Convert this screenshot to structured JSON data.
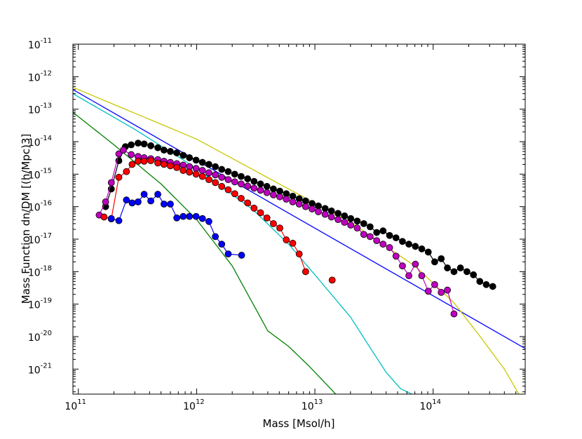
{
  "chart_data": {
    "type": "scatter",
    "title": "",
    "xlabel": "Mass [Msol/h]",
    "ylabel": "Mass Function dn/DM [(h/Mpc)3]",
    "x_scale": "log",
    "y_scale": "log",
    "xlim": [
      90000000000.0,
      600000000000000.0
    ],
    "ylim": [
      1.7e-22,
      1e-11
    ],
    "x_ticks": [
      {
        "value": 100000000000.0,
        "base": "10",
        "exp": "11"
      },
      {
        "value": 1000000000000.0,
        "base": "10",
        "exp": "12"
      },
      {
        "value": 10000000000000.0,
        "base": "10",
        "exp": "13"
      },
      {
        "value": 100000000000000.0,
        "base": "10",
        "exp": "14"
      }
    ],
    "y_ticks": [
      {
        "value": 1e-11,
        "base": "10",
        "exp": "-11"
      },
      {
        "value": 1e-12,
        "base": "10",
        "exp": "-12"
      },
      {
        "value": 1e-13,
        "base": "10",
        "exp": "-13"
      },
      {
        "value": 1e-14,
        "base": "10",
        "exp": "-14"
      },
      {
        "value": 1e-15,
        "base": "10",
        "exp": "-15"
      },
      {
        "value": 1e-16,
        "base": "10",
        "exp": "-16"
      },
      {
        "value": 1e-17,
        "base": "10",
        "exp": "-17"
      },
      {
        "value": 1e-18,
        "base": "10",
        "exp": "-18"
      },
      {
        "value": 1e-19,
        "base": "10",
        "exp": "-19"
      },
      {
        "value": 1e-20,
        "base": "10",
        "exp": "-20"
      },
      {
        "value": 1e-21,
        "base": "10",
        "exp": "-21"
      }
    ],
    "curves": [
      {
        "name": "fit-blue",
        "color": "#0000ff",
        "x": [
          90000000000.0,
          600000000000000.0
        ],
        "y": [
          4e-13,
          4.3e-21
        ]
      },
      {
        "name": "fit-yellow",
        "color": "#c8c800",
        "x": [
          90000000000.0,
          1000000000000.0,
          5000000000000.0,
          20000000000000.0,
          70000000000000.0,
          150000000000000.0,
          250000000000000.0,
          400000000000000.0,
          530000000000000.0
        ],
        "y": [
          4.7e-13,
          1.2e-14,
          5e-16,
          3.3e-17,
          1.5e-18,
          1.1e-19,
          1e-20,
          1e-21,
          1.7e-22
        ]
      },
      {
        "name": "fit-cyan",
        "color": "#00bfbf",
        "x": [
          90000000000.0,
          300000000000.0,
          1000000000000.0,
          3000000000000.0,
          6000000000000.0,
          10000000000000.0,
          20000000000000.0,
          30000000000000.0,
          40000000000000.0,
          53000000000000.0,
          66000000000000.0
        ],
        "y": [
          3e-13,
          2.4e-14,
          1.5e-15,
          8e-17,
          7e-18,
          8e-19,
          4e-20,
          4e-21,
          8e-22,
          2.5e-22,
          1.7e-22
        ]
      },
      {
        "name": "fit-green",
        "color": "#008000",
        "x": [
          90000000000.0,
          200000000000.0,
          500000000000.0,
          1000000000000.0,
          2000000000000.0,
          4000000000000.0,
          6000000000000.0,
          9000000000000.0,
          12000000000000.0,
          15000000000000.0
        ],
        "y": [
          8e-14,
          8e-15,
          5e-16,
          4e-17,
          1.5e-18,
          1.5e-20,
          5e-21,
          1.2e-21,
          4e-22,
          1.7e-22
        ]
      }
    ],
    "series": [
      {
        "name": "black",
        "color": "#000000",
        "x": [
          170000000000.0,
          190000000000.0,
          220000000000.0,
          250000000000.0,
          280000000000.0,
          320000000000.0,
          360000000000.0,
          410000000000.0,
          470000000000.0,
          530000000000.0,
          600000000000.0,
          680000000000.0,
          770000000000.0,
          870000000000.0,
          990000000000.0,
          1120000000000.0,
          1270000000000.0,
          1440000000000.0,
          1630000000000.0,
          1850000000000.0,
          2100000000000.0,
          2380000000000.0,
          2700000000000.0,
          3060000000000.0,
          3470000000000.0,
          3930000000000.0,
          4460000000000.0,
          5050000000000.0,
          5730000000000.0,
          6500000000000.0,
          7370000000000.0,
          8350000000000.0,
          9470000000000.0,
          10700000000000.0,
          12200000000000.0,
          13800000000000.0,
          15700000000000.0,
          17800000000000.0,
          20100000000000.0,
          22800000000000.0,
          25900000000000.0,
          29300000000000.0,
          33300000000000.0,
          37700000000000.0,
          42800000000000.0,
          48500000000000.0,
          55000000000000.0,
          62300000000000.0,
          70700000000000.0,
          80100000000000.0,
          90900000000000.0,
          103000000000000.0,
          117000000000000.0,
          132000000000000.0,
          150000000000000.0,
          170000000000000.0,
          193000000000000.0,
          219000000000000.0,
          248000000000000.0,
          281000000000000.0,
          319000000000000.0
        ],
        "y": [
          1e-16,
          3.5e-16,
          2.6e-15,
          7e-15,
          8e-15,
          9e-15,
          8.5e-15,
          7.5e-15,
          6.5e-15,
          5.5e-15,
          5e-15,
          4.5e-15,
          3.8e-15,
          3.2e-15,
          2.7e-15,
          2.3e-15,
          2e-15,
          1.7e-15,
          1.4e-15,
          1.2e-15,
          1e-15,
          8.5e-16,
          7.2e-16,
          6e-16,
          5e-16,
          4.2e-16,
          3.5e-16,
          3e-16,
          2.5e-16,
          2.1e-16,
          1.75e-16,
          1.5e-16,
          1.25e-16,
          1.05e-16,
          8.8e-17,
          7.4e-17,
          6.2e-17,
          5.2e-17,
          4.3e-17,
          3.6e-17,
          3e-17,
          2.4e-17,
          1.6e-17,
          1.8e-17,
          1.3e-17,
          1.1e-17,
          8.5e-18,
          7e-18,
          6e-18,
          5e-18,
          4e-18,
          2e-18,
          2.5e-18,
          1.3e-18,
          1e-18,
          1.3e-18,
          1e-18,
          8e-19,
          5e-19,
          4e-19,
          3.5e-19
        ]
      },
      {
        "name": "magenta",
        "color": "#bf00bf",
        "x": [
          150000000000.0,
          170000000000.0,
          190000000000.0,
          220000000000.0,
          240000000000.0,
          280000000000.0,
          320000000000.0,
          360000000000.0,
          410000000000.0,
          470000000000.0,
          530000000000.0,
          600000000000.0,
          680000000000.0,
          770000000000.0,
          870000000000.0,
          990000000000.0,
          1120000000000.0,
          1270000000000.0,
          1440000000000.0,
          1630000000000.0,
          1850000000000.0,
          2100000000000.0,
          2380000000000.0,
          2700000000000.0,
          3060000000000.0,
          3470000000000.0,
          3930000000000.0,
          4460000000000.0,
          5050000000000.0,
          5730000000000.0,
          6500000000000.0,
          7370000000000.0,
          8350000000000.0,
          9470000000000.0,
          10700000000000.0,
          12200000000000.0,
          13800000000000.0,
          15700000000000.0,
          17800000000000.0,
          20100000000000.0,
          22800000000000.0,
          25900000000000.0,
          29300000000000.0,
          33300000000000.0,
          37700000000000.0,
          42800000000000.0,
          48500000000000.0,
          55000000000000.0,
          62300000000000.0,
          70700000000000.0,
          80100000000000.0,
          90900000000000.0,
          103000000000000.0,
          117000000000000.0,
          132000000000000.0,
          150000000000000.0
        ],
        "y": [
          5.5e-17,
          1.4e-16,
          5.5e-16,
          4.2e-15,
          5.5e-15,
          4e-15,
          3.5e-15,
          3.2e-15,
          3e-15,
          2.8e-15,
          2.5e-15,
          2.3e-15,
          2.1e-15,
          1.9e-15,
          1.7e-15,
          1.5e-15,
          1.3e-15,
          1.1e-15,
          9.5e-16,
          8e-16,
          6.8e-16,
          5.8e-16,
          5e-16,
          4.3e-16,
          3.7e-16,
          3.2e-16,
          2.7e-16,
          2.3e-16,
          2e-16,
          1.7e-16,
          1.4e-16,
          1.2e-16,
          1e-16,
          8.5e-17,
          7e-17,
          5.8e-17,
          4.8e-17,
          4e-17,
          3.3e-17,
          2.7e-17,
          2.2e-17,
          1.4e-17,
          1.2e-17,
          9e-18,
          7e-18,
          5.5e-18,
          3e-18,
          1.5e-18,
          7.5e-19,
          1.7e-18,
          7.5e-19,
          2.5e-19,
          4e-19,
          2.3e-19,
          2.7e-19,
          5e-20
        ]
      },
      {
        "name": "red",
        "color": "#ff0000",
        "x": [
          165000000000.0,
          190000000000.0,
          220000000000.0,
          255000000000.0,
          285000000000.0,
          320000000000.0,
          360000000000.0,
          410000000000.0,
          470000000000.0,
          530000000000.0,
          600000000000.0,
          680000000000.0,
          770000000000.0,
          870000000000.0,
          990000000000.0,
          1120000000000.0,
          1270000000000.0,
          1440000000000.0,
          1630000000000.0,
          1850000000000.0,
          2100000000000.0,
          2380000000000.0,
          2700000000000.0,
          3060000000000.0,
          3470000000000.0,
          3930000000000.0,
          4460000000000.0,
          5050000000000.0,
          5730000000000.0,
          6500000000000.0,
          7370000000000.0,
          8350000000000.0
        ],
        "y": [
          4.8e-17,
          4.2e-17,
          8e-16,
          1.2e-15,
          2e-15,
          2.5e-15,
          2.5e-15,
          2.6e-15,
          2.2e-15,
          2e-15,
          1.8e-15,
          1.6e-15,
          1.3e-15,
          1.15e-15,
          1e-15,
          8.5e-16,
          6.8e-16,
          5.5e-16,
          4.2e-16,
          3.3e-16,
          2.5e-16,
          1.8e-16,
          1.3e-16,
          9e-17,
          6.5e-17,
          4.5e-17,
          3e-17,
          2.2e-17,
          9.5e-18,
          7.5e-18,
          3.5e-18,
          1e-18
        ]
      },
      {
        "name": "red-isolated",
        "color": "#ff0000",
        "connect": false,
        "x": [
          14000000000000.0
        ],
        "y": [
          5.5e-19
        ]
      },
      {
        "name": "blue",
        "color": "#0000ff",
        "x": [
          190000000000.0,
          220000000000.0,
          255000000000.0,
          285000000000.0,
          320000000000.0,
          360000000000.0,
          410000000000.0,
          470000000000.0,
          530000000000.0,
          600000000000.0,
          680000000000.0,
          770000000000.0,
          870000000000.0,
          990000000000.0,
          1120000000000.0,
          1270000000000.0,
          1440000000000.0,
          1630000000000.0,
          1850000000000.0,
          2400000000000.0
        ],
        "y": [
          4.3e-17,
          3.7e-17,
          1.6e-16,
          1.3e-16,
          1.4e-16,
          2.4e-16,
          1.5e-16,
          2.4e-16,
          1.2e-16,
          1.2e-16,
          4.5e-17,
          5e-17,
          5e-17,
          5e-17,
          4.3e-17,
          3.5e-17,
          1.2e-17,
          7e-18,
          3.5e-18,
          3.2e-18
        ]
      }
    ]
  }
}
